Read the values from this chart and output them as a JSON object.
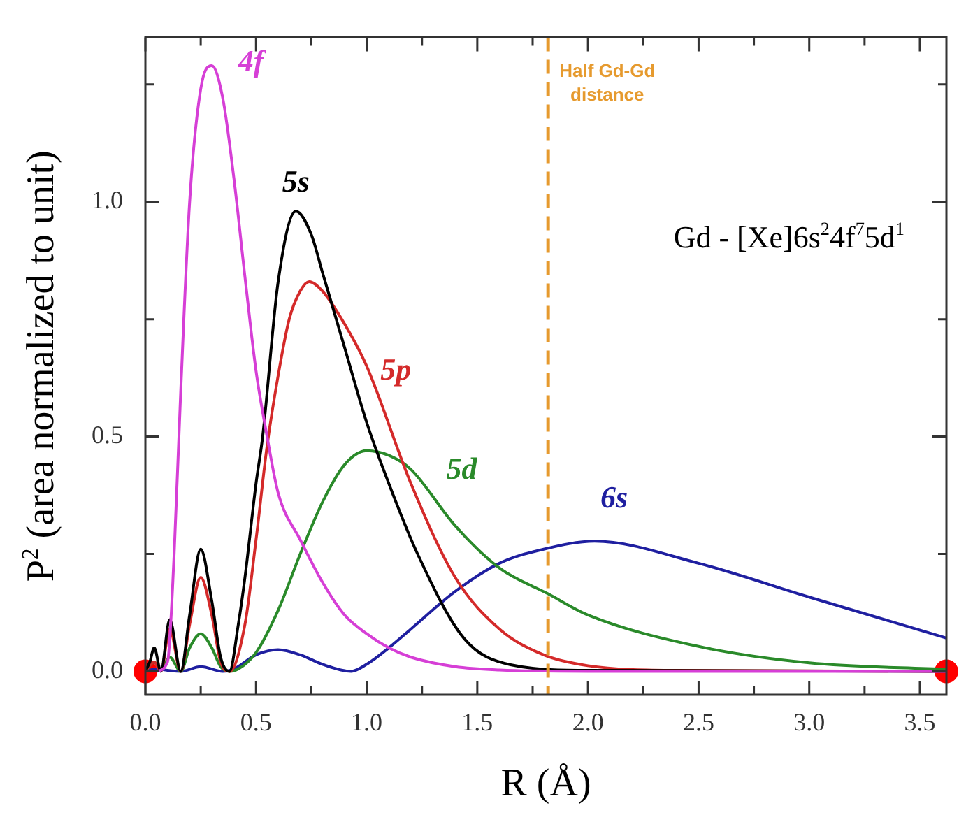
{
  "chart_data": {
    "type": "line",
    "xlabel": "R (Å)",
    "ylabel": "P$^{2}$ (area normalized to unit)",
    "annotations": [
      "Gd - [Xe]6s$^{2}$4f$^{7}$5d$^{1}$"
    ],
    "xlim": [
      0,
      3.62
    ],
    "ylim": [
      -0.05,
      1.35
    ],
    "xticks": [
      {
        "value": 0,
        "label": "0.0"
      },
      {
        "value": 0.25,
        "label": null
      },
      {
        "value": 0.5,
        "label": "0.5"
      },
      {
        "value": 0.75,
        "label": null
      },
      {
        "value": 1,
        "label": "1.0"
      },
      {
        "value": 1.25,
        "label": null
      },
      {
        "value": 1.5,
        "label": "1.5"
      },
      {
        "value": 1.75,
        "label": null
      },
      {
        "value": 2,
        "label": "2.0"
      },
      {
        "value": 2.25,
        "label": null
      },
      {
        "value": 2.5,
        "label": "2.5"
      },
      {
        "value": 2.75,
        "label": null
      },
      {
        "value": 3,
        "label": "3.0"
      },
      {
        "value": 3.25,
        "label": null
      },
      {
        "value": 3.5,
        "label": "3.5"
      }
    ],
    "yticks": [
      {
        "value": 0,
        "label": "0.0"
      },
      {
        "value": 0.25,
        "label": null
      },
      {
        "value": 0.5,
        "label": "0.5"
      },
      {
        "value": 0.75,
        "label": null
      },
      {
        "value": 1,
        "label": "1.0"
      },
      {
        "value": 1.25,
        "label": null
      }
    ],
    "grid": false,
    "legend": false,
    "line_style": "solid",
    "ref_lines": [
      {
        "axis": "x",
        "value": 1.82,
        "label": "Half Gd-Gd distance",
        "color": "#e69a2e",
        "line_style": "dashed"
      }
    ],
    "series": [
      {
        "name": "4f",
        "color": "#d63fd6",
        "x": [
          0.05,
          0.1,
          0.13,
          0.16,
          0.2,
          0.25,
          0.3,
          0.35,
          0.4,
          0.45,
          0.5,
          0.55,
          0.6,
          0.7,
          0.8,
          0.9,
          1.0,
          1.1,
          1.2,
          1.4,
          1.6,
          2.0,
          3.62
        ],
        "values": [
          0,
          0.02,
          0.25,
          0.6,
          1.0,
          1.24,
          1.29,
          1.22,
          1.05,
          0.84,
          0.64,
          0.5,
          0.38,
          0.28,
          0.19,
          0.12,
          0.08,
          0.05,
          0.03,
          0.01,
          0.003,
          0,
          0
        ]
      },
      {
        "name": "5s",
        "color": "#000000",
        "x": [
          0,
          0.02,
          0.04,
          0.07,
          0.11,
          0.16,
          0.2,
          0.25,
          0.3,
          0.34,
          0.38,
          0.42,
          0.45,
          0.5,
          0.53,
          0.6,
          0.68,
          0.75,
          0.8,
          0.9,
          1.0,
          1.1,
          1.23,
          1.44,
          1.65,
          2.0,
          3.62
        ],
        "values": [
          0,
          0.02,
          0.05,
          0,
          0.11,
          0,
          0.12,
          0.26,
          0.15,
          0.03,
          0,
          0.1,
          0.2,
          0.4,
          0.5,
          0.83,
          0.98,
          0.93,
          0.85,
          0.69,
          0.53,
          0.4,
          0.25,
          0.07,
          0.014,
          0.002,
          0
        ]
      },
      {
        "name": "5p",
        "color": "#d42a2a",
        "x": [
          0,
          0.04,
          0.07,
          0.11,
          0.16,
          0.2,
          0.25,
          0.3,
          0.34,
          0.38,
          0.45,
          0.5,
          0.55,
          0.6,
          0.65,
          0.7,
          0.74,
          0.8,
          0.9,
          1.0,
          1.2,
          1.4,
          1.6,
          1.8,
          2.0,
          2.4,
          3.62
        ],
        "values": [
          0,
          0.02,
          0,
          0.09,
          0,
          0.1,
          0.2,
          0.12,
          0.02,
          0,
          0.1,
          0.28,
          0.48,
          0.63,
          0.75,
          0.81,
          0.83,
          0.81,
          0.74,
          0.65,
          0.4,
          0.2,
          0.09,
          0.035,
          0.012,
          0.002,
          0
        ]
      },
      {
        "name": "5d",
        "color": "#2a8a2a",
        "x": [
          0,
          0.04,
          0.07,
          0.11,
          0.16,
          0.2,
          0.25,
          0.3,
          0.34,
          0.38,
          0.42,
          0.5,
          0.6,
          0.7,
          0.8,
          0.9,
          1.0,
          1.1,
          1.2,
          1.4,
          1.6,
          1.82,
          2.0,
          2.5,
          3.0,
          3.62
        ],
        "values": [
          0,
          0.02,
          0.005,
          0.03,
          0,
          0.05,
          0.08,
          0.05,
          0.01,
          0,
          0.005,
          0.04,
          0.13,
          0.25,
          0.36,
          0.44,
          0.47,
          0.46,
          0.43,
          0.31,
          0.22,
          0.165,
          0.12,
          0.053,
          0.018,
          0.004
        ]
      },
      {
        "name": "6s",
        "color": "#1f1fa0",
        "x": [
          0,
          0.05,
          0.1,
          0.16,
          0.25,
          0.35,
          0.4,
          0.5,
          0.6,
          0.7,
          0.8,
          0.93,
          1.0,
          1.1,
          1.2,
          1.4,
          1.6,
          1.8,
          2.03,
          2.5,
          3.0,
          3.62
        ],
        "values": [
          0,
          0.005,
          0.002,
          0,
          0.01,
          0,
          0.005,
          0.035,
          0.046,
          0.035,
          0.015,
          0,
          0.015,
          0.05,
          0.09,
          0.17,
          0.23,
          0.26,
          0.277,
          0.23,
          0.158,
          0.071
        ]
      },
      {
        "type": "scatter",
        "color": "#ff0000",
        "marker": "circle",
        "x": [
          0,
          3.62
        ],
        "values": [
          0,
          0
        ]
      }
    ]
  }
}
